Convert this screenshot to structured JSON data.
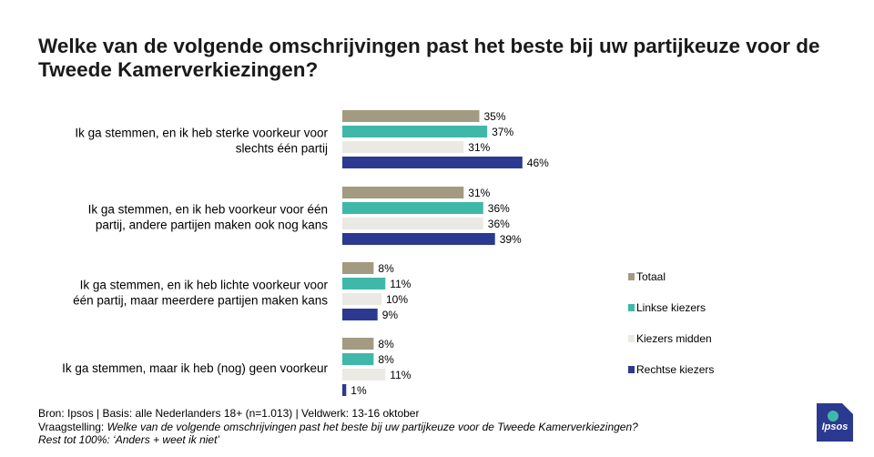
{
  "title": "Welke van de volgende omschrijvingen past het beste bij uw partijkeuze voor de Tweede Kamerverkiezingen?",
  "chart_data": {
    "type": "bar",
    "orientation": "horizontal",
    "categories": [
      [
        "Ik ga stemmen, en ik heb sterke voorkeur voor",
        "slechts één partij"
      ],
      [
        "Ik ga stemmen, en ik heb voorkeur voor één",
        "partij, andere partijen maken ook nog kans"
      ],
      [
        "Ik ga stemmen, en ik heb lichte voorkeur voor",
        "één partij, maar meerdere partijen maken kans"
      ],
      [
        "Ik ga stemmen, maar ik heb (nog) geen voorkeur"
      ]
    ],
    "series": [
      {
        "name": "Totaal",
        "color": "#a39a82",
        "values": [
          35,
          31,
          8,
          8
        ]
      },
      {
        "name": "Linkse kiezers",
        "color": "#3fb8a9",
        "values": [
          37,
          36,
          11,
          8
        ]
      },
      {
        "name": "Kiezers midden",
        "color": "#eae9e4",
        "values": [
          31,
          36,
          10,
          11
        ]
      },
      {
        "name": "Rechtse kiezers",
        "color": "#2b3990",
        "values": [
          46,
          39,
          9,
          1
        ]
      }
    ],
    "value_suffix": "%",
    "xlim": [
      0,
      100
    ],
    "grid": false,
    "legend": "right"
  },
  "footer": {
    "line1": "Bron: Ipsos | Basis: alle Nederlanders  18+ (n=1.013) | Veldwerk: 13-16 oktober",
    "line2_prefix": "Vraagstelling: ",
    "line2_question": "Welke van de volgende omschrijvingen  past het beste bij uw partijkeuze voor de Tweede Kamerverkiezingen?",
    "line3": "Rest tot 100%: ‘Anders + weet ik niet’"
  },
  "logo": {
    "text": "Ipsos",
    "color": "#2b3990"
  }
}
